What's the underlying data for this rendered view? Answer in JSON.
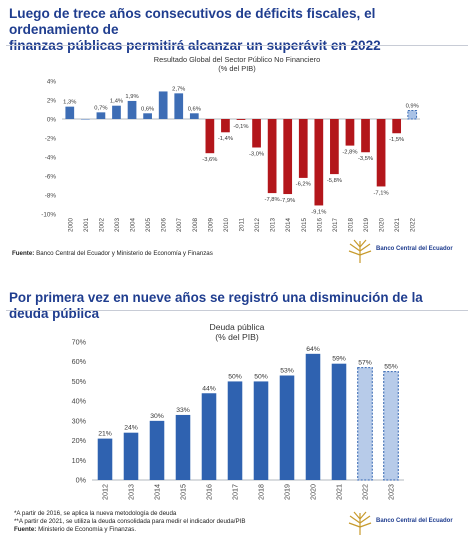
{
  "panel1": {
    "headline": "Luego de trece años consecutivos de déficits fiscales, el ordenamiento de\nfinanzas públicas permitirá alcanzar un superávit en 2022",
    "chart_title": "Resultado Global del Sector Público No Financiero\n(% del PIB)",
    "source_label": "Fuente:",
    "source_text": " Banco Central del Ecuador y Ministerio de Economía y Finanzas",
    "logo_text": "Banco Central del Ecuador"
  },
  "panel2": {
    "headline": "Por primera vez en nueve años se registró una disminución de la deuda pública",
    "chart_title": "Deuda pública\n(% del PIB)",
    "note_1": "*A partir de 2016, se aplica la nueva metodología de deuda",
    "note_2": "**A partir de 2021, se utiliza la deuda consolidada para medir el indicador deuda/PIB",
    "source_label": "Fuente:",
    "source_text": " Ministerio de Economía y Finanzas.",
    "logo_text": "Banco Central del Ecuador"
  },
  "colors": {
    "headline": "#1f3d8f",
    "positive_bar": "#3d6db5",
    "negative_bar": "#b3161b",
    "projection_bar": "#a9c2e6",
    "debt_bar": "#2f62b0",
    "debt_projection_bar": "#b7cbe9"
  },
  "chart_data": [
    {
      "type": "bar",
      "title": "Resultado Global del Sector Público No Financiero (% del PIB)",
      "categories": [
        "2000",
        "2001",
        "2002",
        "2003",
        "2004",
        "2005",
        "2006",
        "2007",
        "2008",
        "2009",
        "2010",
        "2011",
        "2012",
        "2013",
        "2014",
        "2015",
        "2016",
        "2017",
        "2018",
        "2019",
        "2020",
        "2021",
        "2022"
      ],
      "values": [
        1.3,
        0.0,
        0.7,
        1.4,
        1.9,
        0.6,
        2.9,
        2.7,
        0.6,
        -3.6,
        -1.4,
        -0.1,
        -3.0,
        -7.8,
        -7.9,
        -6.2,
        -9.1,
        -5.8,
        -2.8,
        -3.5,
        -7.1,
        -1.5,
        0.9
      ],
      "data_labels": [
        "1,3%",
        "",
        "0,7%",
        "1,4%",
        "1,9%",
        "0,6%",
        "",
        "2,7%",
        "0,6%",
        "-3,6%",
        "-1,4%",
        "-0,1%",
        "-3,0%",
        "-7,8%",
        "-7,9%",
        "-6,2%",
        "-9,1%",
        "-5,8%",
        "-2,8%",
        "-3,5%",
        "-7,1%",
        "-1,5%",
        "0,9%"
      ],
      "projected": [
        "2022"
      ],
      "yticks": [
        "4%",
        "2%",
        "0%",
        "-2%",
        "-4%",
        "-6%",
        "-8%",
        "-10%"
      ],
      "ylim": [
        -10,
        4
      ],
      "xlabel": "",
      "ylabel": "",
      "grid": false,
      "legend": "none"
    },
    {
      "type": "bar",
      "title": "Deuda pública (% del PIB)",
      "categories": [
        "2012",
        "2013",
        "2014",
        "2015",
        "2016",
        "2017",
        "2018",
        "2019",
        "2020",
        "2021",
        "2022",
        "2023"
      ],
      "values": [
        21,
        24,
        30,
        33,
        44,
        50,
        50,
        53,
        64,
        59,
        57,
        55
      ],
      "data_labels": [
        "21%",
        "24%",
        "30%",
        "33%",
        "44%",
        "50%",
        "50%",
        "53%",
        "64%",
        "59%",
        "57%",
        "55%"
      ],
      "projected": [
        "2022",
        "2023"
      ],
      "yticks": [
        "70%",
        "60%",
        "50%",
        "40%",
        "30%",
        "20%",
        "10%",
        "0%"
      ],
      "ylim": [
        0,
        70
      ],
      "xlabel": "",
      "ylabel": "",
      "grid": false,
      "legend": "none"
    }
  ]
}
